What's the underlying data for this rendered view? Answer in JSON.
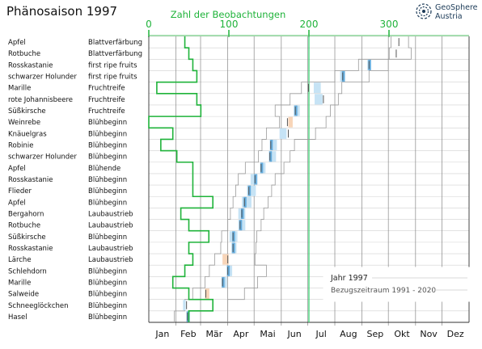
{
  "title": "Phänosaison 1997",
  "logo": {
    "line1": "GeoSphere",
    "line2": "Austria"
  },
  "colors": {
    "observations": "#1fb33a",
    "marker": "#2fd06a",
    "range": "#9a9a9a",
    "bar_light": "#c6e3f5",
    "bar_dark": "#5aa6dc",
    "bar_late": "#f8d5b8",
    "grid": "#d0d0d0",
    "legend_line": "#cccccc"
  },
  "legend": {
    "year": "Jahr 1997",
    "period": "Bezugszeitraum 1991 - 2020"
  },
  "chart_data": {
    "type": "phenology-timeline",
    "title": "Phänosaison 1997",
    "x_months": [
      "Jan",
      "Feb",
      "Mär",
      "Apr",
      "Mai",
      "Jun",
      "Jul",
      "Aug",
      "Sep",
      "Okt",
      "Nov",
      "Dez"
    ],
    "x_range_doy": [
      1,
      365
    ],
    "observations_axis": {
      "label": "Zahl der Beobachtungen",
      "ticks": [
        0,
        100,
        200,
        300
      ],
      "range": [
        0,
        400
      ]
    },
    "marker_value": 200,
    "rows": [
      {
        "plant": "Apfel",
        "phase": "Blattverfärbung",
        "observations": 45,
        "range": [
          277,
          297
        ],
        "bar": [
          283,
          297
        ],
        "bar_color": "none",
        "doy": 286
      },
      {
        "plant": "Rotbuche",
        "phase": "Blattverfärbung",
        "observations": 50,
        "range": [
          275,
          300
        ],
        "bar": [
          282,
          292
        ],
        "bar_color": "none",
        "doy": 283
      },
      {
        "plant": "Rosskastanie",
        "phase": "first ripe fruits",
        "observations": 55,
        "range": [
          240,
          274
        ],
        "bar": [
          250,
          254
        ],
        "bar_color": "light",
        "doy": 252
      },
      {
        "plant": "schwarzer Holunder",
        "phase": "first ripe fruits",
        "observations": 60,
        "range": [
          213,
          252
        ],
        "bar": [
          219,
          225
        ],
        "bar_color": "light",
        "doy": 222
      },
      {
        "plant": "Marille",
        "phase": "Fruchtreife",
        "observations": 10,
        "range": [
          175,
          221
        ],
        "bar": [
          189,
          197
        ],
        "bar_color": "light",
        "doy": 183
      },
      {
        "plant": "rote Johannisbeere",
        "phase": "Fruchtreife",
        "observations": 60,
        "range": [
          162,
          217
        ],
        "bar": [
          190,
          199
        ],
        "bar_color": "light",
        "doy": 200
      },
      {
        "plant": "Süßkirsche",
        "phase": "Fruchtreife",
        "observations": 65,
        "range": [
          145,
          208
        ],
        "bar": [
          166,
          173
        ],
        "bar_color": "light",
        "doy": 168
      },
      {
        "plant": "Weinrebe",
        "phase": "Blühbeginn",
        "observations": 0,
        "range": [
          150,
          203
        ],
        "bar": [
          160,
          165
        ],
        "bar_color": "late",
        "doy": 159
      },
      {
        "plant": "Knäuelgras",
        "phase": "Blühbeginn",
        "observations": 30,
        "range": [
          135,
          191
        ],
        "bar": [
          150,
          158
        ],
        "bar_color": "light",
        "doy": 160
      },
      {
        "plant": "Robinie",
        "phase": "Blühbeginn",
        "observations": 15,
        "range": [
          130,
          167
        ],
        "bar": [
          140,
          147
        ],
        "bar_color": "light",
        "doy": 140
      },
      {
        "plant": "schwarzer Holunder",
        "phase": "Blühbeginn",
        "observations": 35,
        "range": [
          126,
          162
        ],
        "bar": [
          139,
          146
        ],
        "bar_color": "light",
        "doy": 139
      },
      {
        "plant": "Apfel",
        "phase": "Blühende",
        "observations": 55,
        "range": [
          111,
          155
        ],
        "bar": [
          128,
          134
        ],
        "bar_color": "light",
        "doy": 129
      },
      {
        "plant": "Rosskastanie",
        "phase": "Blühbeginn",
        "observations": 55,
        "range": [
          103,
          145
        ],
        "bar": [
          117,
          125
        ],
        "bar_color": "light",
        "doy": 122
      },
      {
        "plant": "Flieder",
        "phase": "Blühbeginn",
        "observations": 55,
        "range": [
          100,
          141
        ],
        "bar": [
          113,
          123
        ],
        "bar_color": "light",
        "doy": 115
      },
      {
        "plant": "Apfel",
        "phase": "Blühbeginn",
        "observations": 80,
        "range": [
          97,
          137
        ],
        "bar": [
          107,
          118
        ],
        "bar_color": "light",
        "doy": 110
      },
      {
        "plant": "Bergahorn",
        "phase": "Laubaustrieb",
        "observations": 40,
        "range": [
          94,
          132
        ],
        "bar": [
          103,
          111
        ],
        "bar_color": "light",
        "doy": 107
      },
      {
        "plant": "Rotbuche",
        "phase": "Laubaustrieb",
        "observations": 50,
        "range": [
          91,
          129
        ],
        "bar": [
          103,
          111
        ],
        "bar_color": "light",
        "doy": 105
      },
      {
        "plant": "Süßkirsche",
        "phase": "Blühbeginn",
        "observations": 75,
        "range": [
          84,
          124
        ],
        "bar": [
          93,
          102
        ],
        "bar_color": "light",
        "doy": 97
      },
      {
        "plant": "Rosskastanie",
        "phase": "Laubaustrieb",
        "observations": 50,
        "range": [
          83,
          123
        ],
        "bar": [
          95,
          101
        ],
        "bar_color": "light",
        "doy": 97
      },
      {
        "plant": "Lärche",
        "phase": "Laubaustrieb",
        "observations": 55,
        "range": [
          76,
          122
        ],
        "bar": [
          85,
          92
        ],
        "bar_color": "late",
        "doy": 91
      },
      {
        "plant": "Schlehdorn",
        "phase": "Blühbeginn",
        "observations": 45,
        "range": [
          70,
          135
        ],
        "bar": [
          90,
          96
        ],
        "bar_color": "light",
        "doy": 91
      },
      {
        "plant": "Marille",
        "phase": "Blühbeginn",
        "observations": 30,
        "range": [
          65,
          125
        ],
        "bar": [
          85,
          90
        ],
        "bar_color": "light",
        "doy": 85
      },
      {
        "plant": "Salweide",
        "phase": "Blühbeginn",
        "observations": 50,
        "range": [
          51,
          110
        ],
        "bar": [
          65,
          70
        ],
        "bar_color": "late",
        "doy": 66
      },
      {
        "plant": "Schneeglöckchen",
        "phase": "Blühbeginn",
        "observations": 80,
        "range": [
          42,
          91
        ],
        "bar": [
          40,
          43
        ],
        "bar_color": "light",
        "doy": 44
      },
      {
        "plant": "Hasel",
        "phase": "Blühbeginn",
        "observations": 50,
        "range": [
          30,
          91
        ],
        "bar": [
          44,
          48
        ],
        "bar_color": "light",
        "doy": 45
      }
    ]
  }
}
